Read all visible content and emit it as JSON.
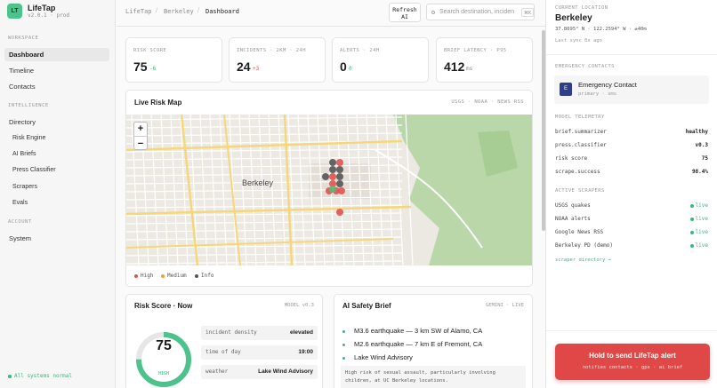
{
  "sidebar": {
    "logo": "LT",
    "app": "LifeTap",
    "version": "v2.0.1 · prod",
    "sections": [
      {
        "title": "WORKSPACE",
        "items": [
          "Dashboard",
          "Timeline",
          "Contacts"
        ]
      },
      {
        "title": "INTELLIGENCE",
        "items": [
          "Directory",
          "Risk Engine",
          "AI Briefs",
          "Press Classifier",
          "Scrapers",
          "Evals"
        ]
      },
      {
        "title": "ACCOUNT",
        "items": [
          "System"
        ]
      }
    ],
    "status": "All systems normal"
  },
  "topbar": {
    "breadcrumb": [
      "LifeTap",
      "Berkeley",
      "Dashboard"
    ],
    "refresh": "Refresh AI",
    "search_placeholder": "Search destination, inciden",
    "shortcut": "⌘K"
  },
  "stats": [
    {
      "label": "RISK SCORE",
      "value": "75",
      "delta": "-6"
    },
    {
      "label": "INCIDENTS · 2KM · 24H",
      "value": "24",
      "delta": "+3"
    },
    {
      "label": "ALERTS · 24H",
      "value": "0",
      "delta": "0"
    },
    {
      "label": "BRIEF LATENCY · P95",
      "value": "412",
      "delta": "ms"
    }
  ],
  "map": {
    "title": "Live Risk Map",
    "sources": "USGS · NOAA · NEWS RSS",
    "place": "Berkeley",
    "zoom_in": "+",
    "zoom_out": "−",
    "legend": [
      "High",
      "Medium",
      "Info"
    ]
  },
  "risk": {
    "title": "Risk Score · Now",
    "model": "MODEL v0.3",
    "score": 75,
    "level": "HIGH",
    "factors": [
      [
        "incident density",
        "elevated"
      ],
      [
        "time of day",
        "19:00"
      ],
      [
        "weather",
        "Lake Wind Advisory"
      ]
    ]
  },
  "brief": {
    "title": "AI Safety Brief",
    "source": "GEMINI · LIVE",
    "items": [
      "M3.6 earthquake — 3 km SW of Alamo, CA",
      "M2.6 earthquake — 7 km E of Fremont, CA",
      "Lake Wind Advisory"
    ],
    "note": "High risk of sexual assault, particularly involving children, at UC Berkeley locations."
  },
  "location": {
    "title": "CURRENT LOCATION",
    "city": "Berkeley",
    "coords": "37.8695° N · 122.2594° W · ±40m",
    "sync": "Last sync 0s ago"
  },
  "contacts": {
    "title": "EMERGENCY CONTACTS",
    "initial": "E",
    "name": "Emergency Contact",
    "meta": "primary · sms"
  },
  "telemetry": {
    "title": "MODEL TELEMETRY",
    "rows": [
      [
        "brief.summarizer",
        "healthy"
      ],
      [
        "press.classifier",
        "v0.3"
      ],
      [
        "risk score",
        "75"
      ],
      [
        "scrape.success",
        "98.4%"
      ]
    ]
  },
  "scrapers": {
    "title": "ACTIVE SCRAPERS",
    "rows": [
      [
        "USGS quakes",
        "live"
      ],
      [
        "NOAA alerts",
        "live"
      ],
      [
        "Google News RSS",
        "live"
      ],
      [
        "Berkeley PD (demo)",
        "live"
      ]
    ],
    "link": "scraper directory →"
  },
  "alert": {
    "title": "Hold to send LifeTap alert",
    "subtitle": "notifies contacts · gps · ai brief"
  }
}
